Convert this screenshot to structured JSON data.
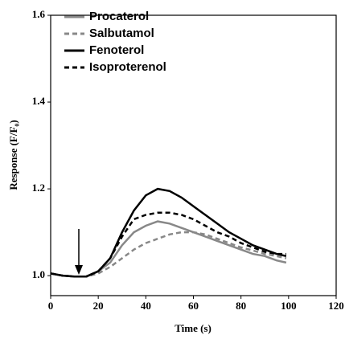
{
  "chart_data": {
    "type": "line",
    "x_label": "Time (s)",
    "y_label": "Response (F/F₀)",
    "x": [
      0,
      5,
      10,
      15,
      20,
      25,
      30,
      35,
      40,
      45,
      50,
      55,
      60,
      65,
      70,
      75,
      80,
      85,
      90,
      95,
      99
    ],
    "series": [
      {
        "name": "Procaterol",
        "color": "#888888",
        "style": "solid",
        "values": [
          1.005,
          1.0,
          0.998,
          0.998,
          1.01,
          1.03,
          1.07,
          1.1,
          1.115,
          1.125,
          1.12,
          1.11,
          1.1,
          1.09,
          1.08,
          1.07,
          1.06,
          1.05,
          1.045,
          1.035,
          1.03
        ]
      },
      {
        "name": "Salbutamol",
        "color": "#888888",
        "style": "dashed",
        "values": [
          1.005,
          1.0,
          0.998,
          0.998,
          1.005,
          1.02,
          1.04,
          1.06,
          1.075,
          1.085,
          1.095,
          1.1,
          1.1,
          1.095,
          1.085,
          1.075,
          1.065,
          1.058,
          1.05,
          1.045,
          1.04
        ]
      },
      {
        "name": "Fenoterol",
        "color": "#000000",
        "style": "solid",
        "values": [
          1.005,
          1.0,
          0.998,
          0.998,
          1.01,
          1.04,
          1.1,
          1.15,
          1.185,
          1.2,
          1.195,
          1.18,
          1.16,
          1.14,
          1.12,
          1.1,
          1.085,
          1.07,
          1.06,
          1.05,
          1.045
        ]
      },
      {
        "name": "Isoproterenol",
        "color": "#000000",
        "style": "dashed",
        "values": [
          1.005,
          1.0,
          0.998,
          0.998,
          1.01,
          1.04,
          1.09,
          1.13,
          1.14,
          1.145,
          1.145,
          1.14,
          1.13,
          1.115,
          1.1,
          1.09,
          1.075,
          1.065,
          1.055,
          1.05,
          1.05
        ]
      }
    ],
    "xlim": [
      0,
      120
    ],
    "xticks": [
      0,
      20,
      40,
      60,
      80,
      100,
      120
    ],
    "ylim": [
      0.954,
      1.6
    ],
    "yticks": [
      {
        "value": 1.0,
        "label": "1.0"
      },
      {
        "value": 1.2,
        "label": "1.2"
      },
      {
        "value": 1.4,
        "label": "1.4"
      },
      {
        "value": 1.6,
        "label": "1.6"
      }
    ],
    "legend": "upper left"
  }
}
